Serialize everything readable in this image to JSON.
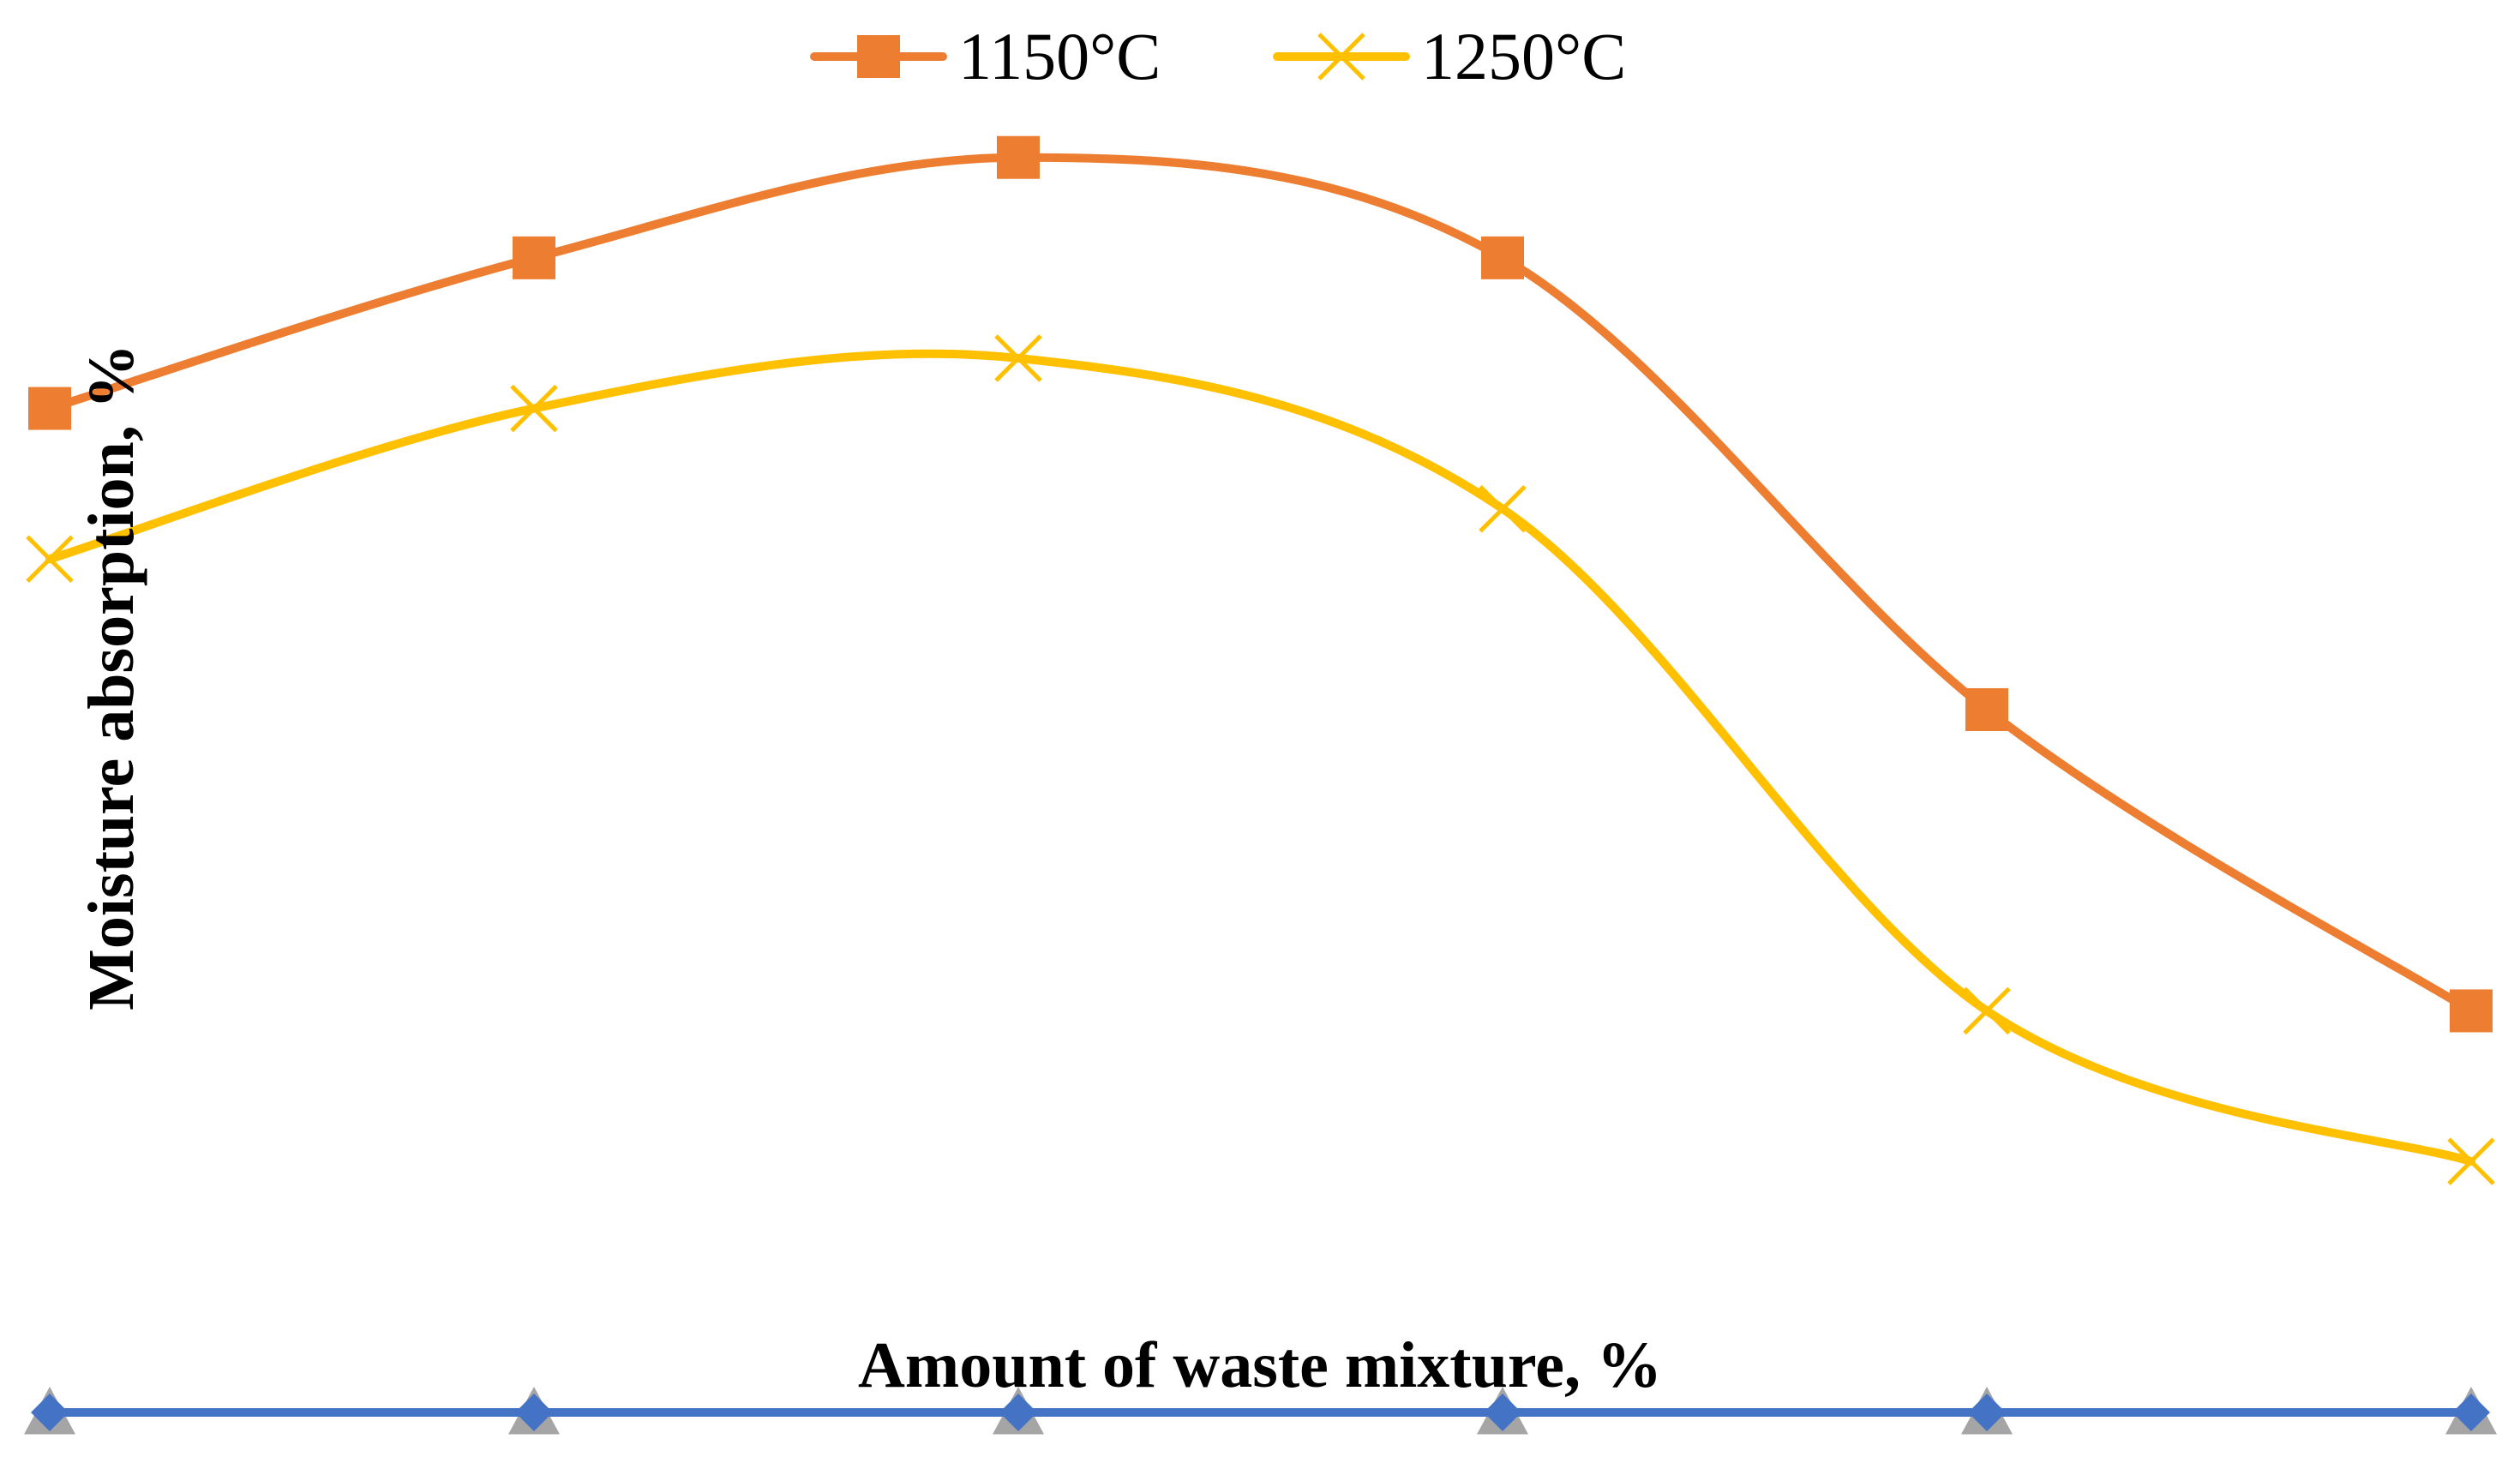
{
  "chart_data": {
    "type": "line",
    "title": "",
    "xlabel": "Amount of waste mixture, %",
    "ylabel": "Moisture absorption, %",
    "categories": [
      "",
      "",
      "",
      "",
      "",
      ""
    ],
    "ylim": [
      0,
      14
    ],
    "grid": false,
    "legend_position": "top-center",
    "smooth": true,
    "series": [
      {
        "name": "1150°C",
        "color": "#ED7D31",
        "marker": "square",
        "values": [
          10.0,
          11.5,
          12.5,
          11.5,
          7.0,
          4.0
        ]
      },
      {
        "name": "1250°C",
        "color": "#FFC000",
        "marker": "x",
        "values": [
          8.5,
          10.0,
          10.5,
          9.0,
          4.0,
          2.5
        ]
      },
      {
        "name": "",
        "color": "#4472C4",
        "marker": "diamond",
        "values": [
          0,
          0,
          0,
          0,
          0,
          0
        ]
      },
      {
        "name": "",
        "color": "#A5A5A5",
        "marker": "triangle",
        "values": [
          0,
          0,
          0,
          0,
          0,
          0
        ]
      }
    ]
  }
}
